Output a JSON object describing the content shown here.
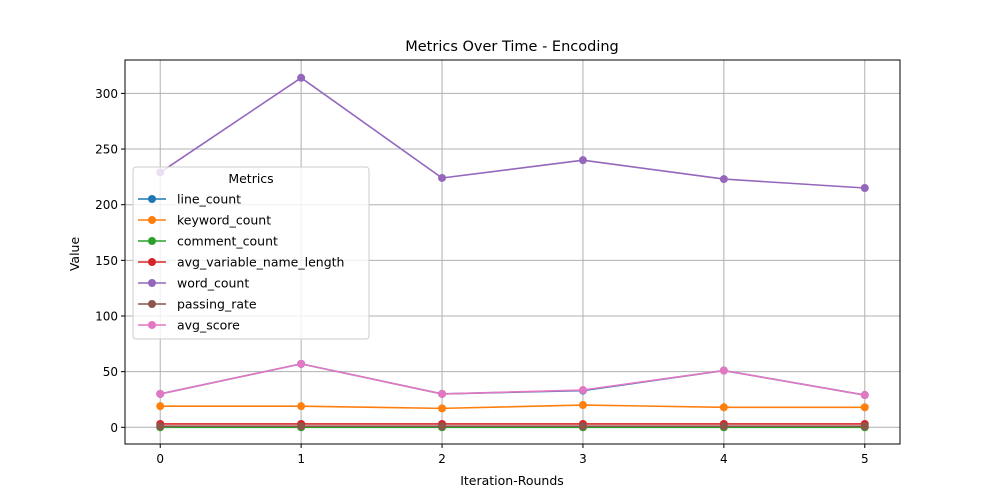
{
  "chart_data": {
    "type": "line",
    "title": "Metrics Over Time - Encoding",
    "xlabel": "Iteration-Rounds",
    "ylabel": "Value",
    "x": [
      0,
      1,
      2,
      3,
      4,
      5
    ],
    "xticks": [
      "0",
      "1",
      "2",
      "3",
      "4",
      "5"
    ],
    "yticks": [
      "0",
      "50",
      "100",
      "150",
      "200",
      "250",
      "300"
    ],
    "xlim": [
      -0.25,
      5.25
    ],
    "ylim": [
      -15,
      330
    ],
    "grid": true,
    "legend": {
      "title": "Metrics",
      "placement": "center-left"
    },
    "series": [
      {
        "name": "line_count",
        "color": "#1f77b4",
        "values": [
          30,
          57,
          30,
          33,
          51,
          29
        ]
      },
      {
        "name": "keyword_count",
        "color": "#ff7f0e",
        "values": [
          19,
          19,
          17,
          20,
          18,
          18
        ]
      },
      {
        "name": "comment_count",
        "color": "#2ca02c",
        "values": [
          0,
          0,
          0,
          0,
          0,
          0
        ]
      },
      {
        "name": "avg_variable_name_length",
        "color": "#d62728",
        "values": [
          3,
          3,
          3,
          3,
          3,
          3
        ]
      },
      {
        "name": "word_count",
        "color": "#9467bd",
        "values": [
          229,
          314,
          224,
          240,
          223,
          215
        ]
      },
      {
        "name": "passing_rate",
        "color": "#8c564b",
        "values": [
          1,
          1,
          1,
          1,
          1,
          1
        ]
      },
      {
        "name": "avg_score",
        "color": "#e377c2",
        "values": [
          30,
          57,
          30,
          33.5,
          51,
          29
        ]
      }
    ]
  }
}
